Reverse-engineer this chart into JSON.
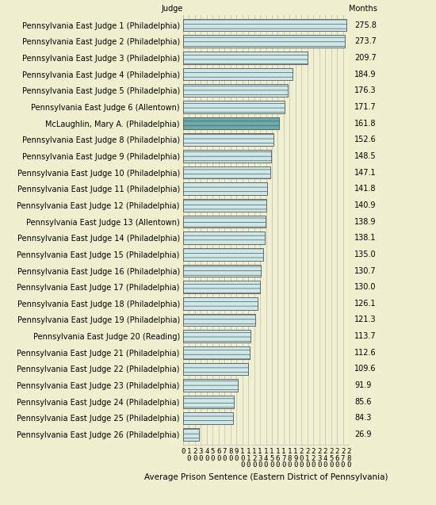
{
  "judges": [
    "Pennsylvania East Judge 1 (Philadelphia)",
    "Pennsylvania East Judge 2 (Philadelphia)",
    "Pennsylvania East Judge 3 (Philadelphia)",
    "Pennsylvania East Judge 4 (Philadelphia)",
    "Pennsylvania East Judge 5 (Philadelphia)",
    "Pennsylvania East Judge 6 (Allentown)",
    "McLaughlin, Mary A. (Philadelphia)",
    "Pennsylvania East Judge 8 (Philadelphia)",
    "Pennsylvania East Judge 9 (Philadelphia)",
    "Pennsylvania East Judge 10 (Philadelphia)",
    "Pennsylvania East Judge 11 (Philadelphia)",
    "Pennsylvania East Judge 12 (Philadelphia)",
    "Pennsylvania East Judge 13 (Allentown)",
    "Pennsylvania East Judge 14 (Philadelphia)",
    "Pennsylvania East Judge 15 (Philadelphia)",
    "Pennsylvania East Judge 16 (Philadelphia)",
    "Pennsylvania East Judge 17 (Philadelphia)",
    "Pennsylvania East Judge 18 (Philadelphia)",
    "Pennsylvania East Judge 19 (Philadelphia)",
    "Pennsylvania East Judge 20 (Reading)",
    "Pennsylvania East Judge 21 (Philadelphia)",
    "Pennsylvania East Judge 22 (Philadelphia)",
    "Pennsylvania East Judge 23 (Philadelphia)",
    "Pennsylvania East Judge 24 (Philadelphia)",
    "Pennsylvania East Judge 25 (Philadelphia)",
    "Pennsylvania East Judge 26 (Philadelphia)"
  ],
  "values": [
    275.8,
    273.7,
    209.7,
    184.9,
    176.3,
    171.7,
    161.8,
    152.6,
    148.5,
    147.1,
    141.8,
    140.9,
    138.9,
    138.1,
    135.0,
    130.7,
    130.0,
    126.1,
    121.3,
    113.7,
    112.6,
    109.6,
    91.9,
    85.6,
    84.3,
    26.9
  ],
  "bar_color_default": "#cce8e8",
  "bar_color_special": "#6aacad",
  "special_index": 6,
  "background_color": "#f0f0d0",
  "title_judge": "Judge",
  "title_months": "Months",
  "xlabel": "Average Prison Sentence (Eastern District of Pennsylvania)",
  "xlim_max": 280,
  "bar_height": 0.75,
  "hatch": "---",
  "tick_fontsize": 6.5,
  "label_fontsize": 7.0,
  "value_fontsize": 7.0,
  "xlabel_fontsize": 7.5,
  "grid_color": "#bbbbbb",
  "bar_edge_color": "#555555",
  "bar_linewidth": 0.6
}
